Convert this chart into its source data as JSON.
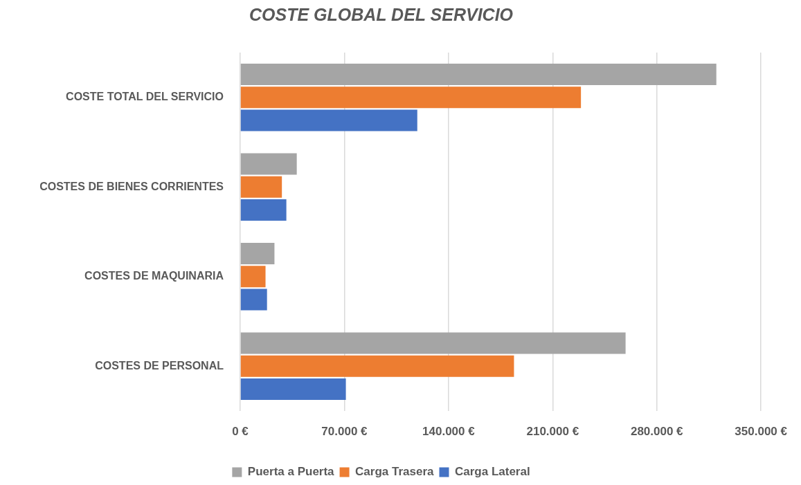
{
  "chart_data": {
    "type": "bar",
    "orientation": "horizontal",
    "title": "COSTE GLOBAL DEL SERVICIO",
    "categories": [
      "COSTE TOTAL DEL SERVICIO",
      "COSTES DE BIENES CORRIENTES",
      "COSTES DE MAQUINARIA",
      "COSTES DE PERSONAL"
    ],
    "series": [
      {
        "name": "Puerta a Puerta",
        "color": "#a5a5a5",
        "values": [
          320000,
          38000,
          23000,
          259000
        ]
      },
      {
        "name": "Carga Trasera",
        "color": "#ed7d31",
        "values": [
          229000,
          28000,
          17000,
          184000
        ]
      },
      {
        "name": "Carga Lateral",
        "color": "#4472c4",
        "values": [
          119000,
          31000,
          18000,
          71000
        ]
      }
    ],
    "xlim": [
      0,
      350000
    ],
    "xticks": [
      {
        "value": 0,
        "label": "0 €"
      },
      {
        "value": 70000,
        "label": "70.000 €"
      },
      {
        "value": 140000,
        "label": "140.000 €"
      },
      {
        "value": 210000,
        "label": "210.000 €"
      },
      {
        "value": 280000,
        "label": "280.000 €"
      },
      {
        "value": 350000,
        "label": "350.000 €"
      }
    ],
    "grid": "x",
    "legend": "bottom"
  }
}
